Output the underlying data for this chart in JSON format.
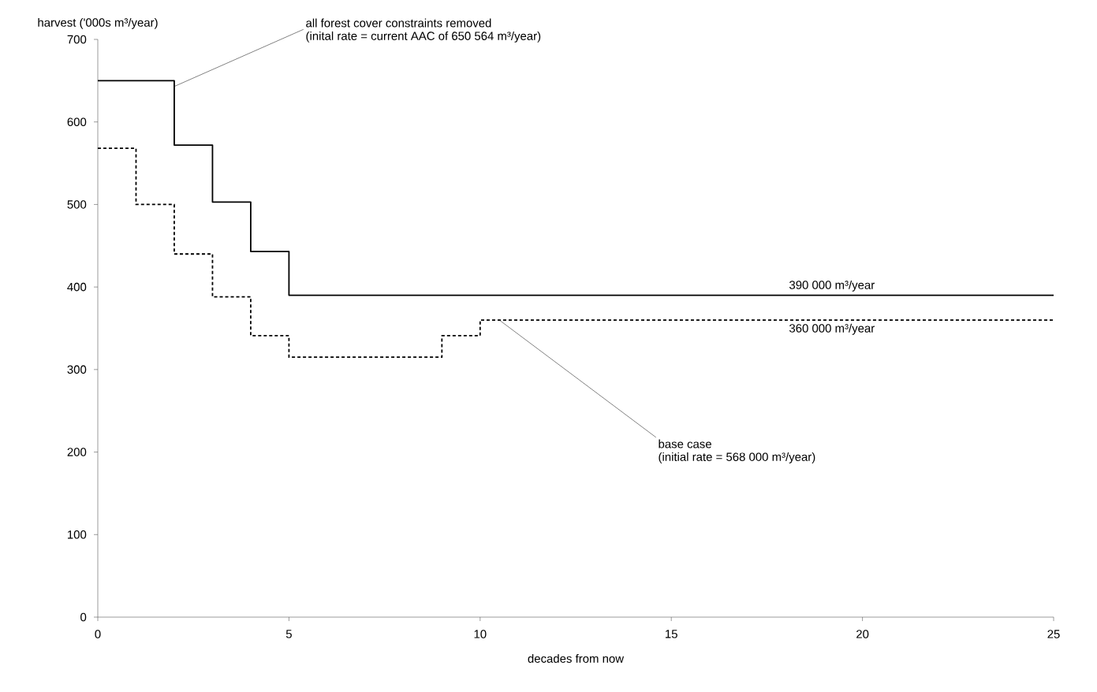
{
  "chart_data": {
    "type": "step",
    "xlabel": "decades from now",
    "ylabel": "harvest ('000s m³/year)",
    "xlim": [
      0,
      25
    ],
    "xticks": [
      0,
      5,
      10,
      15,
      20,
      25
    ],
    "ylim": [
      0,
      700
    ],
    "yticks": [
      0,
      100,
      200,
      300,
      400,
      500,
      600,
      700
    ],
    "grid": false,
    "series": [
      {
        "color": "#000000",
        "line_style": "solid",
        "x": [
          0,
          2,
          3,
          4,
          5,
          25
        ],
        "values": [
          650,
          572,
          503,
          443,
          390,
          390
        ]
      },
      {
        "color": "#000000",
        "line_style": "dashed",
        "x": [
          0,
          1,
          2,
          3,
          4,
          5,
          9,
          10,
          25
        ],
        "values": [
          568,
          500,
          440,
          388,
          341,
          315,
          341,
          360,
          360
        ]
      }
    ],
    "annotations": [
      {
        "text": "all forest cover constraints removed",
        "x": 2,
        "y": 643
      },
      "(inital rate = current AAC of 650 564 m³/year)",
      {
        "text": "390 000 m³/year",
        "x": 19.2,
        "y": 390
      },
      {
        "text": "360 000 m³/year",
        "x": 19.2,
        "y": 360
      },
      {
        "text": "base case",
        "x": 10.5,
        "y": 360
      },
      "(initial rate = 568 000 m³/year)"
    ]
  }
}
